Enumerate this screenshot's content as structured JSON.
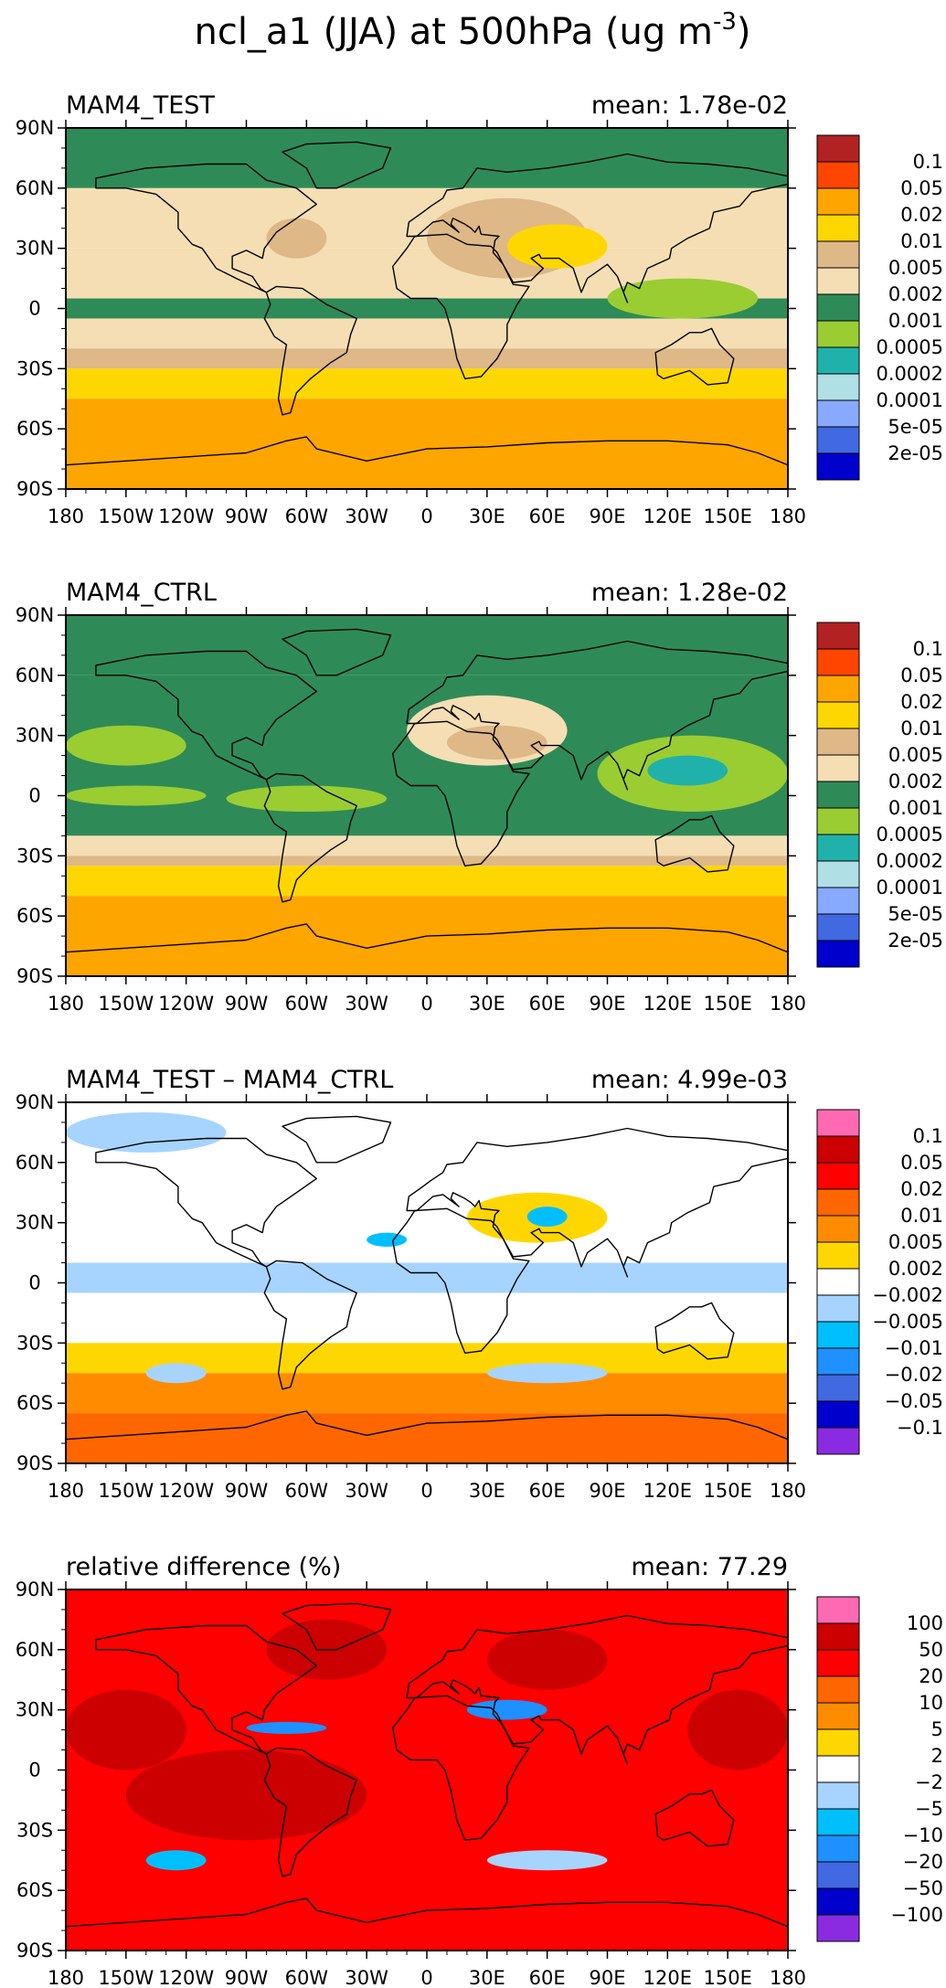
{
  "figure_title": "ncl_a1 (JJA) at 500hPa (ug m",
  "figure_title_sup": "-3",
  "figure_title_close": ")",
  "chart_data": [
    {
      "type": "heatmap",
      "title": "MAM4_TEST",
      "mean_label": "mean: 1.78e-02",
      "x_ticks": [
        "180",
        "150W",
        "120W",
        "90W",
        "60W",
        "30W",
        "0",
        "30E",
        "60E",
        "90E",
        "120E",
        "150E",
        "180"
      ],
      "y_ticks": [
        "90N",
        "60N",
        "30N",
        "0",
        "30S",
        "60S",
        "90S"
      ],
      "xlim": [
        -180,
        180
      ],
      "ylim": [
        -90,
        90
      ],
      "legend_position": "right",
      "legend_levels": [
        "0.1",
        "0.05",
        "0.02",
        "0.01",
        "0.005",
        "0.002",
        "0.001",
        "0.0005",
        "0.0002",
        "0.0001",
        "5e-05",
        "2e-05"
      ],
      "legend_colors": [
        "#b22222",
        "#ff4500",
        "#ffa500",
        "#ffd700",
        "#deb887",
        "#f5deb3",
        "#2e8b57",
        "#9acd32",
        "#20b2aa",
        "#b0e0e6",
        "#87a9ff",
        "#4169e1",
        "#0000cd"
      ],
      "bands": [
        {
          "lat": [
            60,
            90
          ],
          "level": "0.002"
        },
        {
          "lat": [
            30,
            60
          ],
          "level": "0.005"
        },
        {
          "lat": [
            5,
            30
          ],
          "level": "0.005"
        },
        {
          "lat": [
            -5,
            5
          ],
          "level": "0.002"
        },
        {
          "lat": [
            -20,
            -5
          ],
          "level": "0.005"
        },
        {
          "lat": [
            -30,
            -20
          ],
          "level": "0.01"
        },
        {
          "lat": [
            -45,
            -30
          ],
          "level": "0.02"
        },
        {
          "lat": [
            -90,
            -45
          ],
          "level": "0.05"
        }
      ],
      "patches": [
        {
          "lon": [
            0,
            80
          ],
          "lat": [
            15,
            55
          ],
          "level": "0.01"
        },
        {
          "lon": [
            40,
            90
          ],
          "lat": [
            20,
            42
          ],
          "level": "0.02"
        },
        {
          "lon": [
            -80,
            -50
          ],
          "lat": [
            25,
            45
          ],
          "level": "0.01"
        },
        {
          "lon": [
            90,
            165
          ],
          "lat": [
            -5,
            15
          ],
          "level": "0.001"
        }
      ]
    },
    {
      "type": "heatmap",
      "title": "MAM4_CTRL",
      "mean_label": "mean: 1.28e-02",
      "x_ticks": [
        "180",
        "150W",
        "120W",
        "90W",
        "60W",
        "30W",
        "0",
        "30E",
        "60E",
        "90E",
        "120E",
        "150E",
        "180"
      ],
      "y_ticks": [
        "90N",
        "60N",
        "30N",
        "0",
        "30S",
        "60S",
        "90S"
      ],
      "xlim": [
        -180,
        180
      ],
      "ylim": [
        -90,
        90
      ],
      "legend_position": "right",
      "legend_levels": [
        "0.1",
        "0.05",
        "0.02",
        "0.01",
        "0.005",
        "0.002",
        "0.001",
        "0.0005",
        "0.0002",
        "0.0001",
        "5e-05",
        "2e-05"
      ],
      "legend_colors": [
        "#b22222",
        "#ff4500",
        "#ffa500",
        "#ffd700",
        "#deb887",
        "#f5deb3",
        "#2e8b57",
        "#9acd32",
        "#20b2aa",
        "#b0e0e6",
        "#87a9ff",
        "#4169e1",
        "#0000cd"
      ],
      "bands": [
        {
          "lat": [
            60,
            90
          ],
          "level": "0.002"
        },
        {
          "lat": [
            -20,
            60
          ],
          "level": "0.002"
        },
        {
          "lat": [
            -30,
            -20
          ],
          "level": "0.005"
        },
        {
          "lat": [
            -35,
            -30
          ],
          "level": "0.01"
        },
        {
          "lat": [
            -50,
            -35
          ],
          "level": "0.02"
        },
        {
          "lat": [
            -90,
            -50
          ],
          "level": "0.05"
        }
      ],
      "patches": [
        {
          "lon": [
            -10,
            70
          ],
          "lat": [
            15,
            50
          ],
          "level": "0.005"
        },
        {
          "lon": [
            10,
            60
          ],
          "lat": [
            18,
            35
          ],
          "level": "0.01"
        },
        {
          "lon": [
            -180,
            -120
          ],
          "lat": [
            15,
            35
          ],
          "level": "0.001"
        },
        {
          "lon": [
            -180,
            -110
          ],
          "lat": [
            -5,
            5
          ],
          "level": "0.001"
        },
        {
          "lon": [
            -100,
            -20
          ],
          "lat": [
            -8,
            5
          ],
          "level": "0.001"
        },
        {
          "lon": [
            85,
            180
          ],
          "lat": [
            -8,
            30
          ],
          "level": "0.001"
        },
        {
          "lon": [
            110,
            150
          ],
          "lat": [
            5,
            20
          ],
          "level": "0.0005"
        }
      ]
    },
    {
      "type": "heatmap",
      "title": "MAM4_TEST – MAM4_CTRL",
      "mean_label": "mean: 4.99e-03",
      "x_ticks": [
        "180",
        "150W",
        "120W",
        "90W",
        "60W",
        "30W",
        "0",
        "30E",
        "60E",
        "90E",
        "120E",
        "150E",
        "180"
      ],
      "y_ticks": [
        "90N",
        "60N",
        "30N",
        "0",
        "30S",
        "60S",
        "90S"
      ],
      "xlim": [
        -180,
        180
      ],
      "ylim": [
        -90,
        90
      ],
      "legend_position": "right",
      "legend_levels": [
        "0.1",
        "0.05",
        "0.02",
        "0.01",
        "0.005",
        "0.002",
        "−0.002",
        "−0.005",
        "−0.01",
        "−0.02",
        "−0.05",
        "−0.1"
      ],
      "legend_colors": [
        "#ff69b4",
        "#cc0000",
        "#ff0000",
        "#ff6600",
        "#ff8c00",
        "#ffd700",
        "#ffffff",
        "#a6d4ff",
        "#00bfff",
        "#1e90ff",
        "#4169e1",
        "#0000cd",
        "#8a2be2"
      ],
      "bands": [
        {
          "lat": [
            65,
            90
          ],
          "level": "0.002"
        },
        {
          "lat": [
            10,
            65
          ],
          "level": "0.002"
        },
        {
          "lat": [
            -5,
            10
          ],
          "level": "−0.002"
        },
        {
          "lat": [
            -30,
            -5
          ],
          "level": "0.002"
        },
        {
          "lat": [
            -45,
            -30
          ],
          "level": "0.005"
        },
        {
          "lat": [
            -65,
            -45
          ],
          "level": "0.01"
        },
        {
          "lat": [
            -90,
            -65
          ],
          "level": "0.02"
        }
      ],
      "patches": [
        {
          "lon": [
            20,
            90
          ],
          "lat": [
            20,
            45
          ],
          "level": "0.005"
        },
        {
          "lon": [
            50,
            70
          ],
          "lat": [
            28,
            38
          ],
          "level": "−0.005"
        },
        {
          "lon": [
            -30,
            -10
          ],
          "lat": [
            18,
            25
          ],
          "level": "−0.005"
        },
        {
          "lon": [
            -140,
            -110
          ],
          "lat": [
            -50,
            -40
          ],
          "level": "−0.002"
        },
        {
          "lon": [
            30,
            90
          ],
          "lat": [
            -50,
            -40
          ],
          "level": "−0.002"
        },
        {
          "lon": [
            -180,
            -100
          ],
          "lat": [
            65,
            85
          ],
          "level": "−0.002"
        }
      ]
    },
    {
      "type": "heatmap",
      "title": "relative difference (%)",
      "mean_label": "mean: 77.29",
      "x_ticks": [
        "180",
        "150W",
        "120W",
        "90W",
        "60W",
        "30W",
        "0",
        "30E",
        "60E",
        "90E",
        "120E",
        "150E",
        "180"
      ],
      "y_ticks": [
        "90N",
        "60N",
        "30N",
        "0",
        "30S",
        "60S",
        "90S"
      ],
      "xlim": [
        -180,
        180
      ],
      "ylim": [
        -90,
        90
      ],
      "legend_position": "right",
      "legend_levels": [
        "100",
        "50",
        "20",
        "10",
        "5",
        "2",
        "−2",
        "−5",
        "−10",
        "−20",
        "−50",
        "−100"
      ],
      "legend_colors": [
        "#ff69b4",
        "#cc0000",
        "#ff0000",
        "#ff6600",
        "#ff8c00",
        "#ffd700",
        "#ffffff",
        "#a6d4ff",
        "#00bfff",
        "#1e90ff",
        "#4169e1",
        "#0000cd",
        "#8a2be2"
      ],
      "bands": [
        {
          "lat": [
            -90,
            90
          ],
          "level": "50"
        }
      ],
      "patches": [
        {
          "lon": [
            -180,
            -120
          ],
          "lat": [
            0,
            40
          ],
          "level": "100"
        },
        {
          "lon": [
            -150,
            -30
          ],
          "lat": [
            -35,
            10
          ],
          "level": "100"
        },
        {
          "lon": [
            130,
            180
          ],
          "lat": [
            0,
            40
          ],
          "level": "100"
        },
        {
          "lon": [
            30,
            90
          ],
          "lat": [
            40,
            70
          ],
          "level": "100"
        },
        {
          "lon": [
            -80,
            -20
          ],
          "lat": [
            45,
            75
          ],
          "level": "100"
        },
        {
          "lon": [
            -90,
            -50
          ],
          "lat": [
            18,
            24
          ],
          "level": "−10"
        },
        {
          "lon": [
            20,
            60
          ],
          "lat": [
            25,
            35
          ],
          "level": "−10"
        },
        {
          "lon": [
            -140,
            -110
          ],
          "lat": [
            -50,
            -40
          ],
          "level": "−5"
        },
        {
          "lon": [
            30,
            90
          ],
          "lat": [
            -50,
            -40
          ],
          "level": "−2"
        }
      ]
    }
  ]
}
